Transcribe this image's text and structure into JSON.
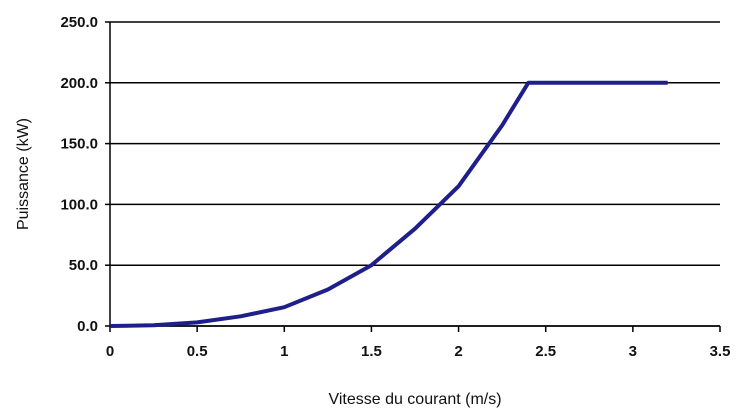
{
  "chart_data": {
    "type": "line",
    "title": "",
    "xlabel": "Vitesse du courant (m/s)",
    "ylabel": "Puissance (kW)",
    "xlim": [
      0,
      3.5
    ],
    "ylim": [
      0,
      250
    ],
    "x_ticks": [
      "0",
      "0.5",
      "1",
      "1.5",
      "2",
      "2.5",
      "3",
      "3.5"
    ],
    "y_ticks": [
      "0.0",
      "50.0",
      "100.0",
      "150.0",
      "200.0",
      "250.0"
    ],
    "grid": "horizontal",
    "series": [
      {
        "color": "#1f1f8c",
        "x": [
          0,
          0.25,
          0.5,
          0.75,
          1.0,
          1.25,
          1.5,
          1.75,
          2.0,
          2.25,
          2.4,
          2.6,
          2.8,
          3.0,
          3.2
        ],
        "y": [
          0.0,
          0.6,
          3.0,
          8.0,
          15.5,
          30.0,
          50.0,
          80.0,
          115.0,
          165.0,
          200.0,
          200.0,
          200.0,
          200.0,
          200.0
        ]
      }
    ]
  }
}
